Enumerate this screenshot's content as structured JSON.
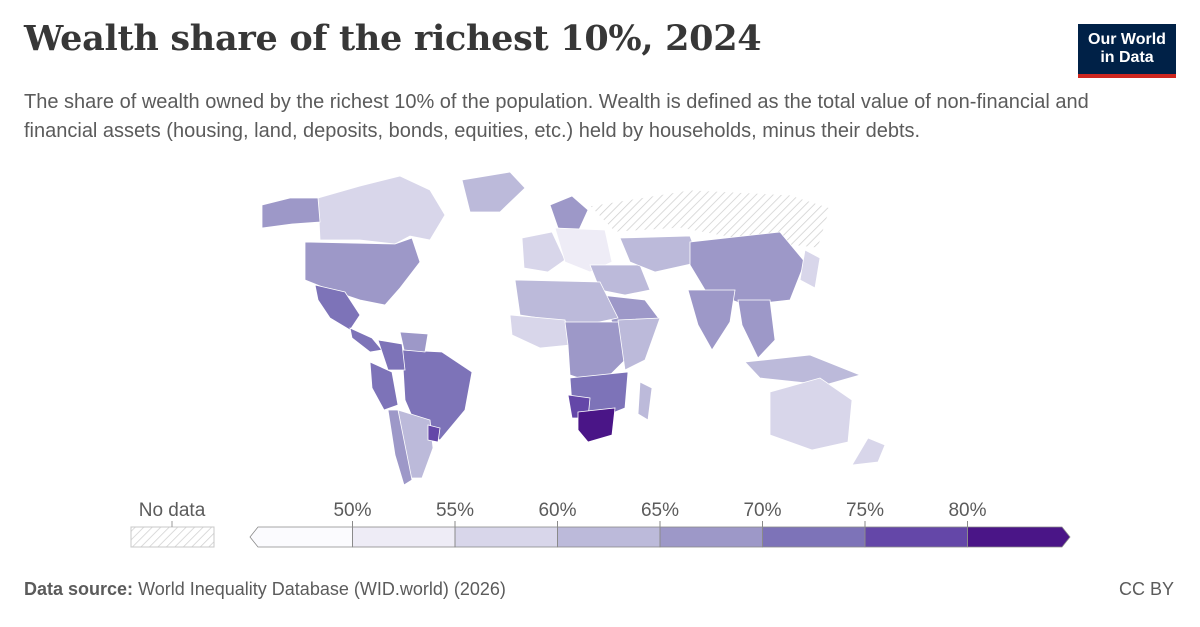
{
  "header": {
    "title": "Wealth share of the richest 10%, 2024",
    "subtitle": "The share of wealth owned by the richest 10% of the population. Wealth is defined as the total value of non-financial and financial assets (housing, land, deposits, bonds, equities, etc.) held by households, minus their debts."
  },
  "logo": {
    "line1": "Our World",
    "line2": "in Data",
    "bg_color": "#002147",
    "accent_color": "#ce261e"
  },
  "legend": {
    "no_data_label": "No data",
    "ticks": [
      "50%",
      "55%",
      "60%",
      "65%",
      "70%",
      "75%",
      "80%"
    ],
    "bins": [
      {
        "range": "<50%",
        "color": "#fbfbfe"
      },
      {
        "range": "50–55%",
        "color": "#eeecf6"
      },
      {
        "range": "55–60%",
        "color": "#d8d6ea"
      },
      {
        "range": "60–65%",
        "color": "#bcbada"
      },
      {
        "range": "65–70%",
        "color": "#9d98c8"
      },
      {
        "range": "70–75%",
        "color": "#7d73b8"
      },
      {
        "range": "75–80%",
        "color": "#6447a8"
      },
      {
        "range": ">80%",
        "color": "#4a1587"
      }
    ]
  },
  "chart_data": {
    "type": "map",
    "metric": "Wealth share of the richest 10%",
    "year": 2024,
    "regions": [
      {
        "name": "Canada",
        "bin": "55–60%"
      },
      {
        "name": "United States",
        "bin": "65–70%"
      },
      {
        "name": "Alaska (US)",
        "bin": "65–70%"
      },
      {
        "name": "Greenland",
        "bin": "60–65%"
      },
      {
        "name": "Mexico",
        "bin": "70–75%"
      },
      {
        "name": "Central America",
        "bin": "70–75%"
      },
      {
        "name": "Brazil",
        "bin": "70–75%"
      },
      {
        "name": "Colombia",
        "bin": "70–75%"
      },
      {
        "name": "Peru",
        "bin": "70–75%"
      },
      {
        "name": "Venezuela",
        "bin": "65–70%"
      },
      {
        "name": "Argentina",
        "bin": "60–65%"
      },
      {
        "name": "Chile",
        "bin": "65–70%"
      },
      {
        "name": "Uruguay",
        "bin": "75–80%"
      },
      {
        "name": "Western Europe",
        "bin": "55–60%"
      },
      {
        "name": "Scandinavia",
        "bin": "65–70%"
      },
      {
        "name": "Eastern Europe",
        "bin": "50–55%"
      },
      {
        "name": "Russia",
        "bin": "No data"
      },
      {
        "name": "Middle East",
        "bin": "60–65%"
      },
      {
        "name": "Arabian Peninsula",
        "bin": "65–70%"
      },
      {
        "name": "Central Asia",
        "bin": "60–65%"
      },
      {
        "name": "China",
        "bin": "65–70%"
      },
      {
        "name": "India",
        "bin": "65–70%"
      },
      {
        "name": "Southeast Asia",
        "bin": "65–70%"
      },
      {
        "name": "Indonesia",
        "bin": "60–65%"
      },
      {
        "name": "Japan",
        "bin": "55–60%"
      },
      {
        "name": "North Africa",
        "bin": "60–65%"
      },
      {
        "name": "West Africa",
        "bin": "55–60%"
      },
      {
        "name": "Central Africa",
        "bin": "65–70%"
      },
      {
        "name": "East Africa",
        "bin": "60–65%"
      },
      {
        "name": "Southern Africa",
        "bin": "70–75%"
      },
      {
        "name": "Namibia",
        "bin": "75–80%"
      },
      {
        "name": "South Africa",
        "bin": ">80%"
      },
      {
        "name": "Madagascar",
        "bin": "60–65%"
      },
      {
        "name": "Australia",
        "bin": "55–60%"
      },
      {
        "name": "New Zealand",
        "bin": "55–60%"
      }
    ]
  },
  "footer": {
    "source_label": "Data source:",
    "source_text": "World Inequality Database (WID.world) (2026)",
    "license": "CC BY"
  }
}
